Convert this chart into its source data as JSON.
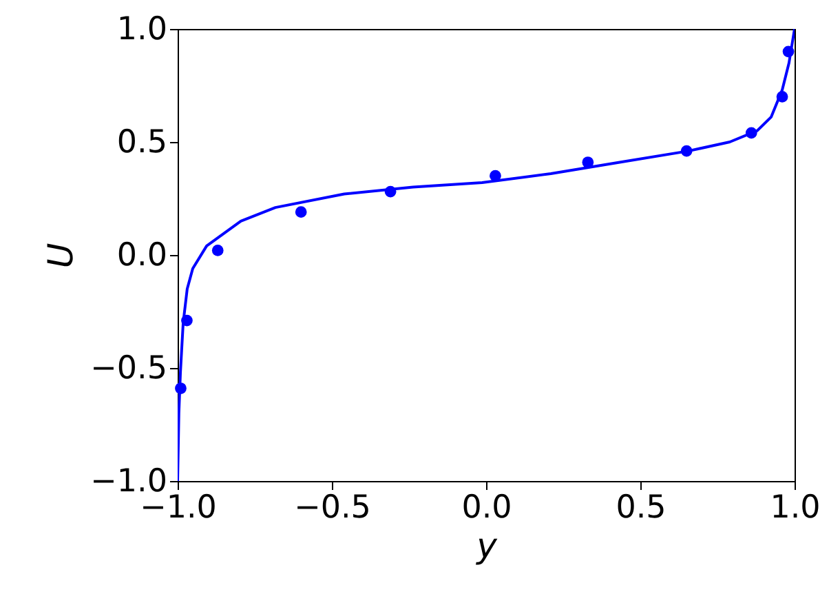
{
  "chart_data": {
    "type": "line",
    "xlabel": "y",
    "ylabel": "U",
    "xlim": [
      -1,
      1
    ],
    "ylim": [
      -1,
      1
    ],
    "xticks": [
      {
        "value": -1,
        "label": "−1.0"
      },
      {
        "value": -0.5,
        "label": "−0.5"
      },
      {
        "value": 0,
        "label": "0.0"
      },
      {
        "value": 0.5,
        "label": "0.5"
      },
      {
        "value": 1,
        "label": "1.0"
      }
    ],
    "yticks": [
      {
        "value": -1,
        "label": "−1.0"
      },
      {
        "value": -0.5,
        "label": "−0.5"
      },
      {
        "value": 0,
        "label": "0.0"
      },
      {
        "value": 0.5,
        "label": "0.5"
      },
      {
        "value": 1,
        "label": "1.0"
      }
    ],
    "grid": false,
    "series": [
      {
        "type": "line",
        "color": "#0000ff",
        "x": [
          -1,
          -0.996,
          -0.991,
          -0.982,
          -0.969,
          -0.951,
          -0.906,
          -0.795,
          -0.683,
          -0.46,
          -0.237,
          -0.013,
          0.21,
          0.433,
          0.656,
          0.79,
          0.879,
          0.924,
          0.96,
          0.982,
          1
        ],
        "values": [
          -1,
          -0.7,
          -0.52,
          -0.3,
          -0.15,
          -0.06,
          0.04,
          0.15,
          0.21,
          0.27,
          0.3,
          0.32,
          0.36,
          0.41,
          0.46,
          0.5,
          0.55,
          0.61,
          0.73,
          0.85,
          1
        ]
      },
      {
        "type": "scatter",
        "color": "#0000ff",
        "marker": "circle",
        "x": [
          -0.99,
          -0.97,
          -0.87,
          -0.6,
          -0.31,
          0.03,
          0.33,
          0.65,
          0.86,
          0.96,
          0.98
        ],
        "values": [
          -0.59,
          -0.29,
          0.02,
          0.19,
          0.28,
          0.35,
          0.41,
          0.46,
          0.54,
          0.7,
          0.9
        ]
      }
    ]
  }
}
